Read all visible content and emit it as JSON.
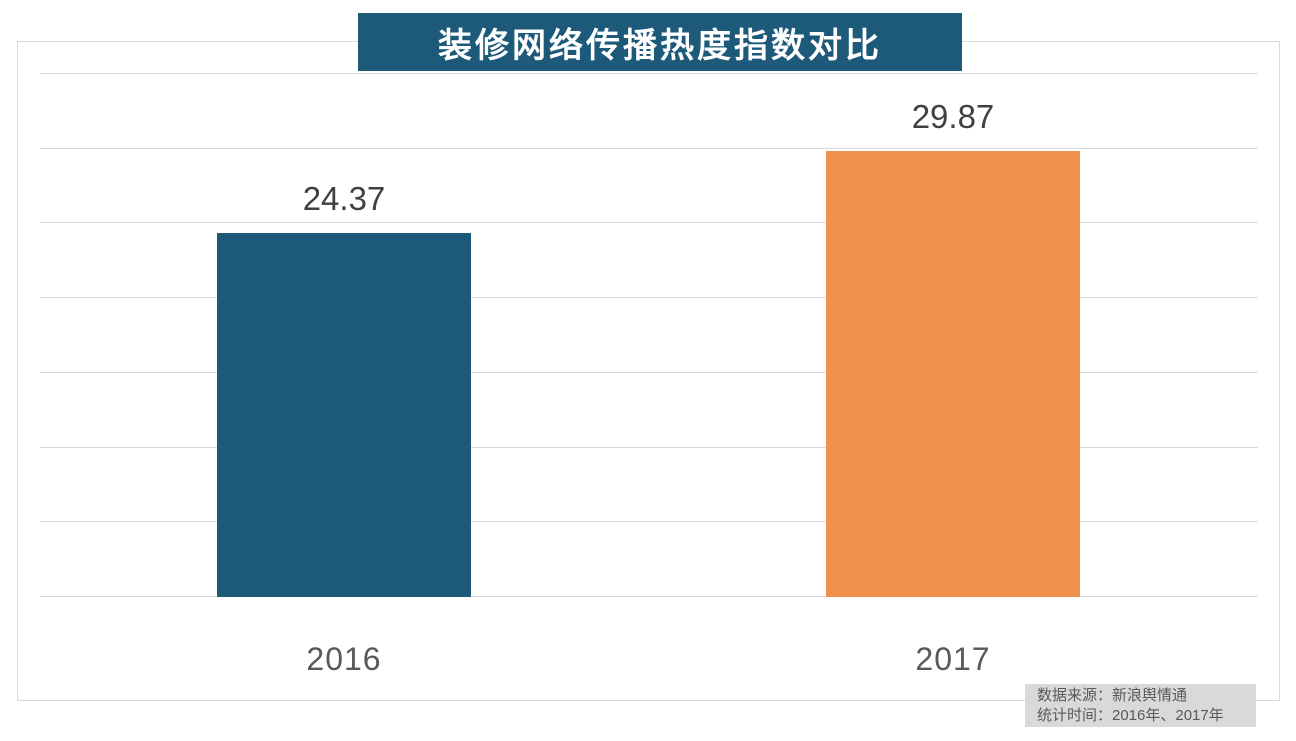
{
  "title": "装修网络传播热度指数对比",
  "chart_data": {
    "type": "bar",
    "title": "装修网络传播热度指数对比",
    "categories": [
      "2016",
      "2017"
    ],
    "values": [
      24.37,
      29.87
    ],
    "value_labels": [
      "24.37",
      "29.87"
    ],
    "xlabel": "",
    "ylabel": "",
    "ylim": [
      0,
      35
    ],
    "ytick_step": 5,
    "grid": true,
    "legend": "none",
    "bar_colors": [
      "#1d5a7a",
      "#f0924d"
    ]
  },
  "source_note": {
    "line1": "数据来源：新浪舆情通",
    "line2": "统计时间：2016年、2017年"
  },
  "colors": {
    "title_banner_bg": "#1d5a7a",
    "title_text": "#ffffff",
    "bar_2016": "#1d5a7a",
    "bar_2017": "#f0924d",
    "gridline": "#d9d9d9",
    "frame_border": "#d9d9d9",
    "value_label_text": "#404040",
    "axis_label_text": "#595959",
    "source_box_bg": "#d9d9d9",
    "source_text": "#595959",
    "background": "#ffffff"
  }
}
